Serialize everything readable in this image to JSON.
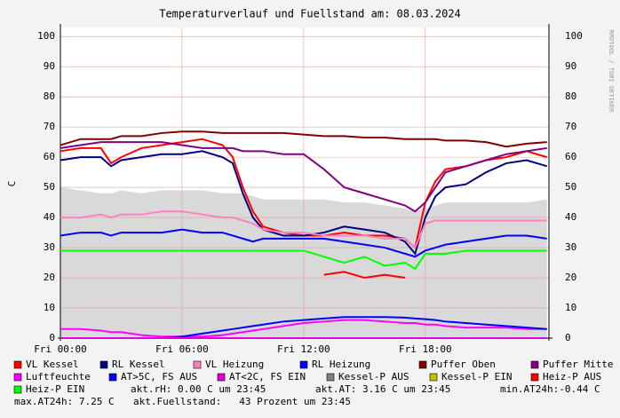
{
  "chart_data": {
    "type": "line",
    "title": "Temperaturverlauf und Fuellstand am: 08.03.2024",
    "y_label": "C",
    "side_text": "RRDTOOL / TOBI OETIKER",
    "x": [
      0,
      1,
      2,
      2.5,
      3,
      4,
      5,
      6,
      7,
      8,
      8.5,
      9,
      9.5,
      10,
      11,
      12,
      13,
      14,
      15,
      16,
      17,
      17.5,
      18,
      18.5,
      19,
      20,
      21,
      22,
      23,
      24
    ],
    "xlim": [
      0,
      24.1
    ],
    "xticks": [
      {
        "value": 0,
        "label": "Fri 00:00"
      },
      {
        "value": 6,
        "label": "Fri 06:00"
      },
      {
        "value": 12,
        "label": "Fri 12:00"
      },
      {
        "value": 18,
        "label": "Fri 18:00"
      }
    ],
    "ylim": [
      0,
      103
    ],
    "yticks": [
      0,
      10,
      20,
      30,
      40,
      50,
      60,
      70,
      80,
      90,
      100
    ],
    "grid": true,
    "series": [
      {
        "name": "VL Kessel",
        "color": "#ff0000",
        "values": [
          62,
          63,
          63,
          58,
          60,
          63,
          64,
          65,
          66,
          64,
          60,
          50,
          42,
          37,
          35,
          34,
          34,
          35,
          34,
          34,
          33,
          30,
          45,
          52,
          56,
          57,
          59,
          60,
          62,
          60
        ]
      },
      {
        "name": "RL Kessel",
        "color": "#000080",
        "values": [
          59,
          60,
          60,
          57,
          59,
          60,
          61,
          61,
          62,
          60,
          58,
          48,
          40,
          36,
          34,
          34,
          35,
          37,
          36,
          35,
          32,
          28,
          40,
          47,
          50,
          51,
          55,
          58,
          59,
          57
        ]
      },
      {
        "name": "VL Heizung",
        "color": "#ff80c0",
        "values": [
          40,
          40,
          41,
          40,
          41,
          41,
          42,
          42,
          41,
          40,
          40,
          39,
          38,
          36,
          35,
          35,
          34,
          34,
          34,
          33,
          33,
          30,
          38,
          39,
          39,
          39,
          39,
          39,
          39,
          39
        ]
      },
      {
        "name": "RL Heizung",
        "color": "#0000ff",
        "values": [
          34,
          35,
          35,
          34,
          35,
          35,
          35,
          36,
          35,
          35,
          34,
          33,
          32,
          33,
          33,
          33,
          33,
          32,
          31,
          30,
          28,
          27,
          29,
          30,
          31,
          32,
          33,
          34,
          34,
          33
        ]
      },
      {
        "name": "Puffer Oben",
        "color": "#800000",
        "values": [
          64,
          66,
          66,
          66,
          67,
          67,
          68,
          68.5,
          68.5,
          68,
          68,
          68,
          68,
          68,
          68,
          67.5,
          67,
          67,
          66.5,
          66.5,
          66,
          66,
          66,
          66,
          65.5,
          65.5,
          65,
          63.5,
          64.5,
          65
        ]
      },
      {
        "name": "Puffer Mitte",
        "color": "#800080",
        "values": [
          63,
          64,
          65,
          65,
          65,
          65,
          65,
          64,
          63,
          63,
          63,
          62,
          62,
          62,
          61,
          61,
          56,
          50,
          48,
          46,
          44,
          42,
          45,
          50,
          55,
          57,
          59,
          61,
          62,
          63
        ]
      },
      {
        "name": "Luftfeuchte",
        "color": "#ff00ff",
        "values": [
          3,
          3,
          2.5,
          2,
          2,
          1,
          0.5,
          0.5,
          0.5,
          1,
          1.5,
          2,
          2.5,
          3,
          4,
          5,
          5.5,
          6,
          6,
          5.5,
          5,
          5,
          4.5,
          4.5,
          4,
          3.5,
          3.5,
          3.5,
          3,
          3
        ]
      },
      {
        "name": "AT>5C, FS AUS",
        "color": "#0000ff",
        "values": [
          0,
          0,
          0,
          0,
          0,
          0,
          0,
          0.5,
          1.5,
          2.5,
          3,
          3.5,
          4,
          4.5,
          5.5,
          6,
          6.5,
          7,
          7,
          7,
          6.8,
          6.5,
          6.3,
          6,
          5.5,
          5,
          4.5,
          4,
          3.5,
          3
        ]
      },
      {
        "name": "AT<2C, FS EIN",
        "color": "#e000e0",
        "values": [
          0,
          0,
          0,
          0,
          0,
          0,
          0,
          0,
          0,
          0,
          0,
          0,
          0,
          0,
          0,
          0,
          0,
          0,
          0,
          0,
          0,
          0,
          0,
          0,
          0,
          0,
          0,
          0,
          0,
          0
        ]
      },
      {
        "name": "Kessel-P AUS",
        "color": "#808080",
        "area": true,
        "values": [
          50,
          49,
          48,
          48,
          49,
          48,
          49,
          49,
          49,
          48,
          48,
          48,
          47,
          46,
          46,
          46,
          46,
          45,
          45,
          44,
          43,
          42,
          43,
          44,
          45,
          45,
          45,
          45,
          45,
          46
        ]
      },
      {
        "name": "Kessel-P EIN",
        "color": "#c0c000",
        "values": [
          null,
          null,
          null,
          null,
          null,
          null,
          null,
          null,
          null,
          null,
          null,
          null,
          null,
          null,
          null,
          null,
          null,
          null,
          null,
          null,
          null,
          null,
          null,
          null,
          null,
          null,
          null,
          null,
          null,
          null
        ]
      },
      {
        "name": "Heiz-P AUS",
        "color": "#ff0000",
        "values": [
          null,
          null,
          null,
          null,
          null,
          null,
          null,
          null,
          null,
          null,
          null,
          null,
          null,
          null,
          null,
          null,
          21,
          22,
          20,
          21,
          20,
          null,
          null,
          null,
          null,
          null,
          null,
          null,
          null,
          null
        ]
      },
      {
        "name": "Heiz-P EIN",
        "color": "#00ff00",
        "values": [
          29,
          29,
          29,
          29,
          29,
          29,
          29,
          29,
          29,
          29,
          29,
          29,
          29,
          29,
          29,
          29,
          27,
          25,
          27,
          24,
          25,
          23,
          28,
          28,
          28,
          29,
          29,
          29,
          29,
          29
        ]
      }
    ],
    "stats": [
      "akt.rH: 0.00 C um 23:45",
      "akt.AT: 3.16 C um 23:45",
      "min.AT24h:-0.44 C",
      "max.AT24h: 7.25 C",
      "akt.Fuellstand:   43 Prozent um 23:45"
    ]
  }
}
